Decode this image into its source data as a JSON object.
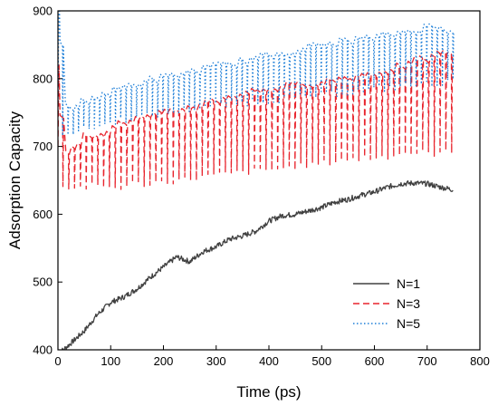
{
  "chart_data": {
    "type": "line",
    "xlabel": "Time (ps)",
    "ylabel": "Adsorption Capacity",
    "xlim": [
      0,
      800
    ],
    "ylim": [
      400,
      900
    ],
    "xticks": [
      0,
      100,
      200,
      300,
      400,
      500,
      600,
      700,
      800
    ],
    "yticks": [
      400,
      500,
      600,
      700,
      800,
      900
    ],
    "grid": false,
    "legend_position": "bottom-right",
    "series": [
      {
        "name": "N=1",
        "color": "#404040",
        "line_style": "solid",
        "x": [
          0,
          10,
          25,
          50,
          75,
          100,
          125,
          150,
          175,
          200,
          225,
          250,
          275,
          300,
          325,
          350,
          375,
          400,
          425,
          450,
          475,
          500,
          525,
          550,
          575,
          600,
          625,
          650,
          675,
          700,
          725,
          750
        ],
        "y": [
          395,
          400,
          410,
          428,
          452,
          470,
          478,
          490,
          507,
          522,
          537,
          530,
          545,
          552,
          563,
          568,
          575,
          590,
          598,
          600,
          605,
          610,
          618,
          622,
          628,
          633,
          640,
          645,
          646,
          645,
          640,
          636
        ]
      },
      {
        "name": "N=3",
        "color": "#e8242d",
        "line_style": "dashed",
        "x": [
          0,
          5,
          10,
          25,
          50,
          75,
          100,
          125,
          150,
          175,
          200,
          225,
          250,
          275,
          300,
          325,
          350,
          375,
          400,
          425,
          450,
          475,
          500,
          525,
          550,
          575,
          600,
          625,
          650,
          675,
          700,
          725,
          750
        ],
        "y": [
          700,
          760,
          700,
          695,
          718,
          722,
          728,
          738,
          742,
          745,
          750,
          756,
          760,
          766,
          770,
          776,
          780,
          784,
          787,
          790,
          792,
          795,
          798,
          800,
          804,
          807,
          810,
          815,
          820,
          826,
          832,
          838,
          842
        ],
        "troughs": [
          640,
          640,
          640,
          640,
          640,
          640,
          640,
          640,
          645,
          645,
          648,
          650,
          652,
          655,
          658,
          660,
          662,
          664,
          665,
          668,
          670,
          672,
          675,
          678,
          680,
          682,
          684,
          686,
          688,
          690,
          690,
          690,
          690
        ]
      },
      {
        "name": "N=5",
        "color": "#1e7fd8",
        "line_style": "dotted",
        "x": [
          0,
          5,
          10,
          25,
          50,
          75,
          100,
          125,
          150,
          175,
          200,
          225,
          250,
          275,
          300,
          325,
          350,
          375,
          400,
          425,
          450,
          475,
          500,
          525,
          550,
          575,
          600,
          625,
          650,
          675,
          700,
          725,
          750
        ],
        "y": [
          760,
          880,
          760,
          758,
          770,
          776,
          782,
          790,
          795,
          800,
          803,
          808,
          812,
          816,
          820,
          824,
          828,
          832,
          836,
          840,
          844,
          848,
          852,
          855,
          858,
          860,
          862,
          866,
          870,
          874,
          878,
          876,
          872
        ],
        "troughs": [
          720,
          720,
          720,
          720,
          725,
          730,
          735,
          740,
          742,
          745,
          748,
          752,
          755,
          758,
          760,
          762,
          764,
          766,
          768,
          770,
          772,
          774,
          776,
          778,
          780,
          782,
          784,
          786,
          788,
          790,
          792,
          794,
          795
        ]
      }
    ]
  }
}
